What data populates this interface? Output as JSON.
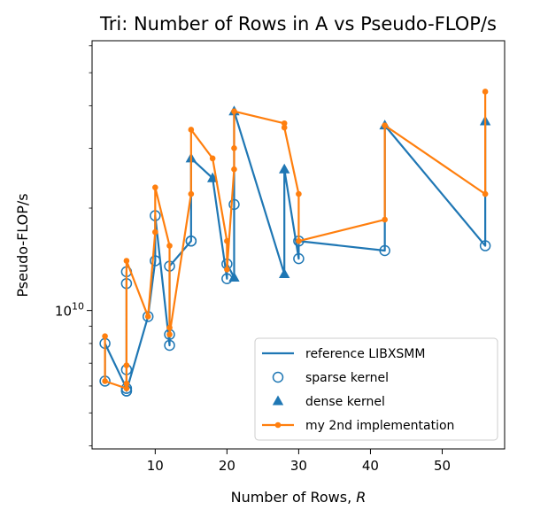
{
  "chart_data": {
    "type": "line",
    "title": "Tri: Number of Rows in A vs Pseudo-FLOP/s",
    "xlabel_prefix": "Number of Rows, ",
    "xlabel_var": "R",
    "ylabel": "Pseudo-FLOP/s",
    "xscale": "linear",
    "yscale": "log",
    "xlim": [
      1.2,
      58.7
    ],
    "ylim_log10": [
      9.593,
      10.793
    ],
    "grid": false,
    "legend_position": "lower right",
    "x_ticks": [
      {
        "value": 10,
        "label": "10"
      },
      {
        "value": 20,
        "label": "20"
      },
      {
        "value": 30,
        "label": "30"
      },
      {
        "value": 40,
        "label": "40"
      },
      {
        "value": 50,
        "label": "50"
      }
    ],
    "y_major_ticks": [
      {
        "value": 10,
        "base": "10",
        "exp": "10"
      }
    ],
    "y_minor_ticks_log10": [
      9.602,
      9.699,
      9.778,
      9.845,
      9.903,
      9.954,
      10.301,
      10.477,
      10.602,
      10.699,
      10.778
    ],
    "colors": {
      "blue": "#1f77b4",
      "orange": "#ff7f0e"
    },
    "legend": [
      {
        "label": "reference LIBXSMM",
        "kind": "line",
        "color": "#1f77b4"
      },
      {
        "label": "sparse kernel",
        "kind": "open-circle",
        "color": "#1f77b4"
      },
      {
        "label": "dense kernel",
        "kind": "triangle",
        "color": "#1f77b4"
      },
      {
        "label": "my 2nd implementation",
        "kind": "line-dot",
        "color": "#ff7f0e"
      }
    ],
    "series": [
      {
        "name": "reference LIBXSMM",
        "color": "#1f77b4",
        "x": [
          3,
          3,
          6,
          6,
          6,
          6,
          6,
          9,
          10,
          10,
          12,
          12,
          12,
          15,
          15,
          18,
          20,
          20,
          21,
          21,
          21,
          28,
          28,
          30,
          30,
          42,
          42,
          56,
          56
        ],
        "y": [
          6200000000.0,
          8000000000.0,
          5900000000.0,
          6400000000.0,
          12000000000.0,
          13000000000.0,
          5800000000.0,
          9600000000.0,
          14000000000.0,
          19000000000.0,
          7900000000.0,
          8500000000.0,
          13500000000.0,
          16000000000.0,
          28000000000.0,
          24500000000.0,
          12400000000.0,
          13700000000.0,
          12500000000.0,
          20500000000.0,
          38500000000.0,
          12800000000.0,
          26000000000.0,
          14200000000.0,
          16000000000.0,
          15000000000.0,
          35000000000.0,
          15500000000.0,
          36000000000.0
        ]
      },
      {
        "name": "sparse kernel",
        "marker": "open-circle",
        "color": "#1f77b4",
        "x": [
          3,
          3,
          6,
          6,
          6,
          6,
          6,
          6,
          9,
          10,
          10,
          12,
          12,
          12,
          15,
          15,
          20,
          20,
          21,
          30,
          30,
          42,
          56
        ],
        "y": [
          6200000000.0,
          8000000000.0,
          5800000000.0,
          5900000000.0,
          6700000000.0,
          12000000000.0,
          13000000000.0,
          5800000000.0,
          9600000000.0,
          14000000000.0,
          19000000000.0,
          7900000000.0,
          8500000000.0,
          13500000000.0,
          16000000000.0,
          16000000000.0,
          12400000000.0,
          13700000000.0,
          20500000000.0,
          14200000000.0,
          16000000000.0,
          15000000000.0,
          15500000000.0
        ]
      },
      {
        "name": "dense kernel",
        "marker": "triangle",
        "color": "#1f77b4",
        "x": [
          15,
          18,
          21,
          21,
          28,
          28,
          42,
          56
        ],
        "y": [
          28000000000.0,
          24500000000.0,
          12500000000.0,
          38500000000.0,
          12800000000.0,
          26000000000.0,
          35000000000.0,
          36000000000.0
        ]
      },
      {
        "name": "my 2nd implementation",
        "marker": "dot",
        "color": "#ff7f0e",
        "x": [
          3,
          3,
          6,
          6,
          6,
          6,
          9,
          10,
          10,
          12,
          12,
          12,
          15,
          15,
          18,
          20,
          20,
          21,
          21,
          21,
          28,
          28,
          30,
          30,
          42,
          42,
          56,
          56
        ],
        "y": [
          8400000000.0,
          6200000000.0,
          5900000000.0,
          6100000000.0,
          6900000000.0,
          14000000000.0,
          9600000000.0,
          17000000000.0,
          23000000000.0,
          15500000000.0,
          8900000000.0,
          8500000000.0,
          22000000000.0,
          34000000000.0,
          28000000000.0,
          16000000000.0,
          13200000000.0,
          26000000000.0,
          30000000000.0,
          38500000000.0,
          35500000000.0,
          34500000000.0,
          22000000000.0,
          16000000000.0,
          18500000000.0,
          35000000000.0,
          22000000000.0,
          44000000000.0
        ]
      }
    ]
  }
}
